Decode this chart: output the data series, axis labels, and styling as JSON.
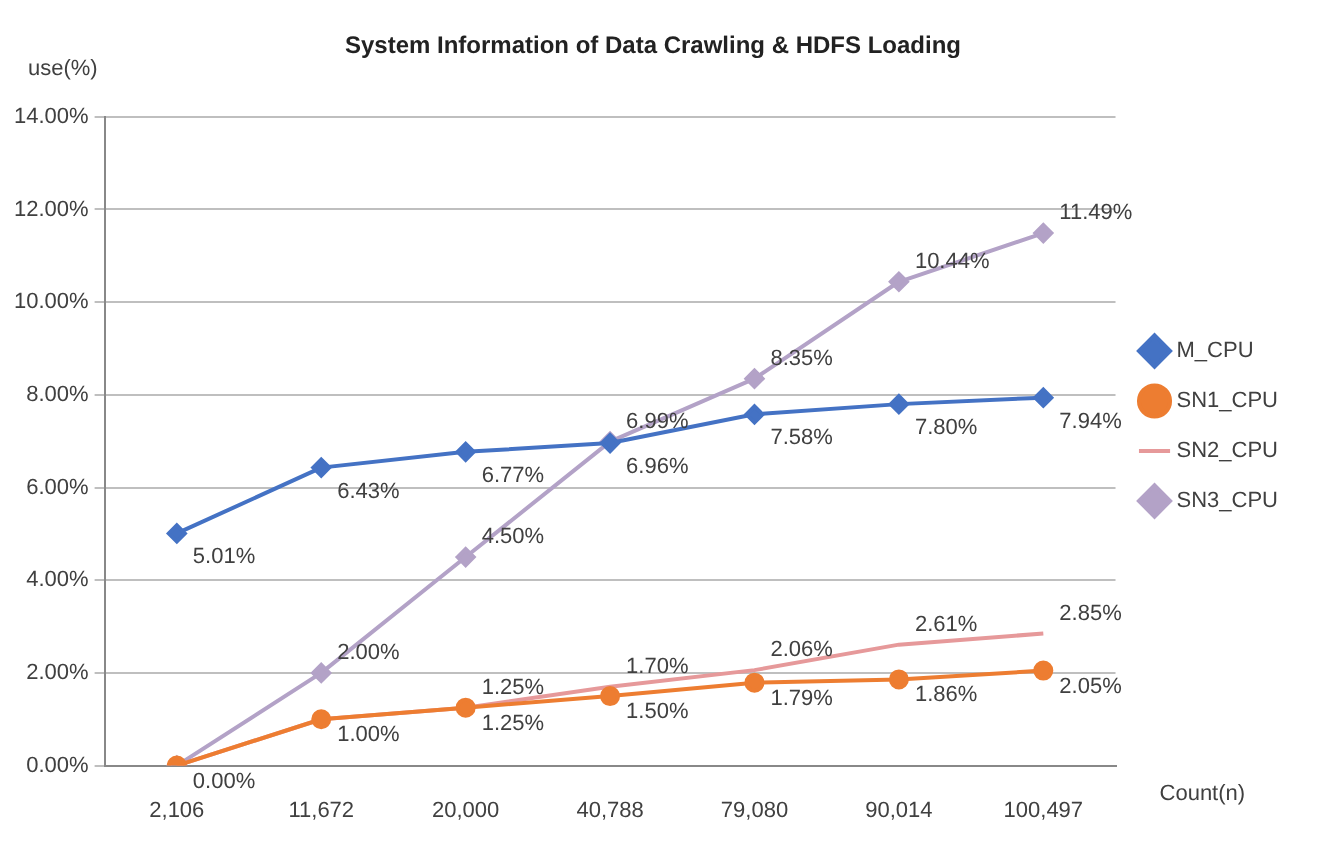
{
  "chart_data": {
    "type": "line",
    "title": "System Information of Data Crawling & HDFS Loading",
    "xlabel": "Count(n)",
    "ylabel": "use(%)",
    "categories": [
      "2,106",
      "11,672",
      "20,000",
      "40,788",
      "79,080",
      "90,014",
      "100,497"
    ],
    "series": [
      {
        "name": "M_CPU",
        "color": "#4472c4",
        "marker": "diamond",
        "values": [
          5.01,
          6.43,
          6.77,
          6.96,
          7.58,
          7.8,
          7.94
        ],
        "value_labels": [
          "5.01%",
          "6.43%",
          "6.77%",
          "6.96%",
          "7.58%",
          "7.80%",
          "7.94%"
        ]
      },
      {
        "name": "SN1_CPU",
        "color": "#ed7d31",
        "marker": "circle",
        "values": [
          0,
          1.0,
          1.25,
          1.5,
          1.79,
          1.86,
          2.05
        ],
        "value_labels": [
          "0.00%",
          "1.00%",
          "1.25%",
          "1.50%",
          "1.79%",
          "1.86%",
          "2.05%"
        ]
      },
      {
        "name": "SN2_CPU",
        "color": "#e6999a",
        "marker": "none",
        "values": [
          0,
          1.0,
          1.25,
          1.7,
          2.06,
          2.61,
          2.85
        ],
        "value_labels": [
          null,
          null,
          "1.25%",
          "1.70%",
          "2.06%",
          "2.61%",
          "2.85%"
        ]
      },
      {
        "name": "SN3_CPU",
        "color": "#b3a2c7",
        "marker": "diamond",
        "values": [
          0,
          2.0,
          4.5,
          6.99,
          8.35,
          10.44,
          11.49
        ],
        "value_labels": [
          null,
          "2.00%",
          "4.50%",
          "6.99%",
          "8.35%",
          "10.44%",
          "11.49%"
        ]
      }
    ],
    "ylim": [
      0,
      14
    ],
    "yticks": [
      {
        "value": 0,
        "label": "0.00%"
      },
      {
        "value": 2,
        "label": "2.00%"
      },
      {
        "value": 4,
        "label": "4.00%"
      },
      {
        "value": 6,
        "label": "6.00%"
      },
      {
        "value": 8,
        "label": "8.00%"
      },
      {
        "value": 10,
        "label": "10.00%"
      },
      {
        "value": 12,
        "label": "12.00%"
      },
      {
        "value": 14,
        "label": "14.00%"
      }
    ],
    "grid": "y",
    "legend": "right"
  }
}
